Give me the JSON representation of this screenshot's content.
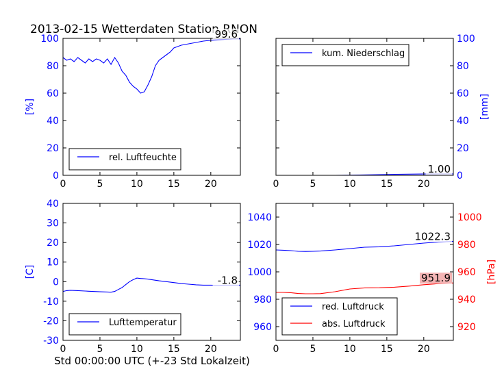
{
  "title": "2013-02-15 Wetterdaten Station RNON",
  "xlabel": "Std 00:00:00 UTC (+-23 Std Lokalzeit)",
  "colors": {
    "blue": "#0000ff",
    "red": "#ff0000",
    "black": "#000000",
    "redbox": "#f4b4b4"
  },
  "chart_data": [
    {
      "type": "line",
      "panel": "top-left",
      "ylabel": "[%]",
      "xlim": [
        0,
        24
      ],
      "ylim": [
        0,
        100
      ],
      "xticks": [
        "0",
        "5",
        "10",
        "15",
        "20"
      ],
      "yticks": [
        "0",
        "20",
        "40",
        "60",
        "80",
        "100"
      ],
      "legend": {
        "placement": "lower-left",
        "entries": [
          "rel. Luftfeuchte"
        ]
      },
      "annotation": "99.6",
      "series": [
        {
          "name": "rel. Luftfeuchte",
          "color": "#0000ff",
          "x": [
            0,
            0.5,
            1,
            1.5,
            2,
            2.5,
            3,
            3.5,
            4,
            4.5,
            5,
            5.5,
            6,
            6.5,
            7,
            7.5,
            8,
            8.5,
            9,
            9.5,
            10,
            10.5,
            11,
            11.5,
            12,
            12.5,
            13,
            13.5,
            14,
            14.5,
            15,
            15.5,
            16,
            17,
            18,
            19,
            20,
            21,
            22,
            23,
            24
          ],
          "y": [
            86,
            84,
            85,
            83,
            86,
            84,
            82,
            85,
            83,
            85,
            84,
            82,
            85,
            81,
            86,
            82,
            76,
            73,
            68,
            65,
            63,
            60,
            61,
            66,
            72,
            80,
            84,
            86,
            88,
            90,
            93,
            94,
            95,
            96,
            97,
            98,
            98.6,
            99,
            99.3,
            99.5,
            99.6
          ]
        }
      ]
    },
    {
      "type": "line",
      "panel": "top-right",
      "ylabel": "[mm]",
      "xlim": [
        0,
        24
      ],
      "ylim": [
        0,
        100
      ],
      "xticks": [
        "0",
        "5",
        "10",
        "15",
        "20"
      ],
      "yticks": [
        "0",
        "20",
        "40",
        "60",
        "80",
        "100"
      ],
      "legend": {
        "placement": "top-left",
        "entries": [
          "kum. Niederschlag"
        ]
      },
      "annotation": "1.00",
      "series": [
        {
          "name": "kum. Niederschlag",
          "color": "#0000ff",
          "x": [
            0,
            4,
            8,
            10,
            12,
            14,
            16,
            18,
            20,
            22,
            24
          ],
          "y": [
            0,
            0,
            0,
            0.1,
            0.3,
            0.5,
            0.7,
            0.85,
            0.95,
            1.0,
            1.0
          ]
        }
      ]
    },
    {
      "type": "line",
      "panel": "bottom-left",
      "ylabel": "[C]",
      "xlim": [
        0,
        24
      ],
      "ylim": [
        -30,
        40
      ],
      "xticks": [
        "0",
        "5",
        "10",
        "15",
        "20"
      ],
      "yticks": [
        "-30",
        "-20",
        "-10",
        "0",
        "10",
        "20",
        "30",
        "40"
      ],
      "legend": {
        "placement": "lower-left",
        "entries": [
          "Lufttemperatur"
        ]
      },
      "annotation": "-1.8",
      "series": [
        {
          "name": "Lufttemperatur",
          "color": "#0000ff",
          "x": [
            0,
            0.5,
            1,
            2,
            3,
            4,
            5,
            6,
            6.5,
            7,
            7.5,
            8,
            8.5,
            9,
            9.5,
            10,
            10.5,
            11,
            11.5,
            12,
            13,
            14,
            15,
            16,
            17,
            18,
            19,
            20,
            21,
            22,
            23,
            24
          ],
          "y": [
            -5,
            -4.6,
            -4.4,
            -4.6,
            -4.8,
            -5,
            -5.2,
            -5.3,
            -5.4,
            -5,
            -4,
            -3,
            -1.5,
            0,
            1,
            1.8,
            1.6,
            1.5,
            1.3,
            1,
            0.4,
            0,
            -0.5,
            -1,
            -1.3,
            -1.6,
            -1.8,
            -1.8,
            -1.9,
            -1.8,
            -1.8,
            -1.8
          ]
        }
      ]
    },
    {
      "type": "line",
      "panel": "bottom-right",
      "ylabel_right": "[hPa]",
      "xlim": [
        0,
        24
      ],
      "ylim": [
        950,
        1050
      ],
      "ylim_right": [
        910,
        1010
      ],
      "xticks": [
        "0",
        "5",
        "10",
        "15",
        "20"
      ],
      "yticks": [
        "960",
        "980",
        "1000",
        "1020",
        "1040"
      ],
      "yticks_right": [
        "920",
        "940",
        "960",
        "980",
        "1000"
      ],
      "legend": {
        "placement": "lower-left",
        "entries": [
          "red. Luftdruck",
          "abs. Luftdruck"
        ]
      },
      "annotations": [
        "1022.3",
        "951.9"
      ],
      "series": [
        {
          "name": "red. Luftdruck",
          "color": "#0000ff",
          "axis": "left",
          "x": [
            0,
            1,
            2,
            3,
            4,
            5,
            6,
            8,
            10,
            12,
            14,
            16,
            18,
            20,
            22,
            24
          ],
          "y": [
            1016,
            1015.8,
            1015.5,
            1015,
            1014.9,
            1015,
            1015.2,
            1016,
            1017,
            1018,
            1018.3,
            1019,
            1020,
            1021,
            1021.8,
            1022.3
          ]
        },
        {
          "name": "abs. Luftdruck",
          "color": "#ff0000",
          "axis": "right",
          "x": [
            0,
            1,
            2,
            3,
            4,
            5,
            6,
            8,
            10,
            12,
            14,
            16,
            18,
            20,
            22,
            24
          ],
          "y": [
            945,
            945,
            944.8,
            944.2,
            944,
            944,
            944.1,
            945.5,
            947.5,
            948.3,
            948.4,
            948.8,
            949.6,
            950.6,
            951.4,
            951.9
          ]
        }
      ]
    }
  ]
}
